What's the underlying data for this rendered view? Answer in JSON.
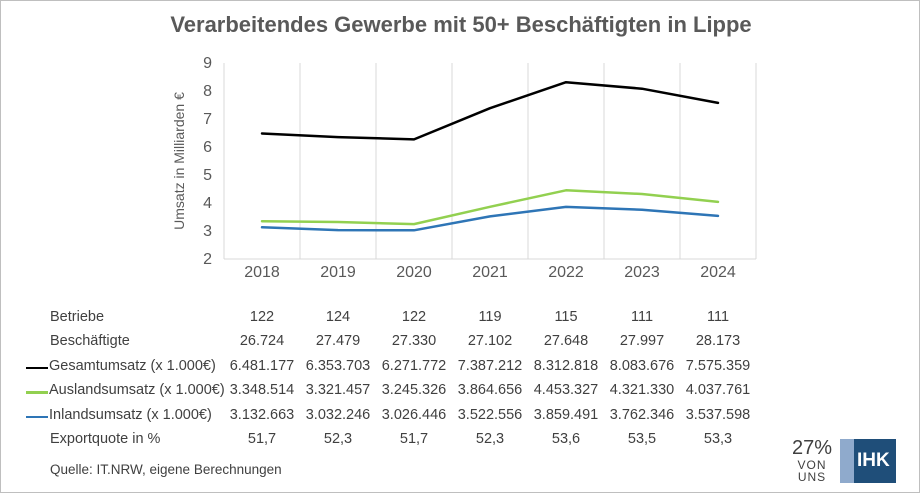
{
  "chart_data": {
    "type": "line",
    "title": "Verarbeitendes Gewerbe mit 50+ Beschäftigten in Lippe",
    "ylabel": "Umsatz in Milliarden €",
    "ylim": [
      2,
      9
    ],
    "yticks": [
      "2",
      "3",
      "4",
      "5",
      "6",
      "7",
      "8",
      "9"
    ],
    "grid": "vertical",
    "categories": [
      "2018",
      "2019",
      "2020",
      "2021",
      "2022",
      "2023",
      "2024"
    ],
    "series": [
      {
        "name": "Gesamtumsatz (x 1.000€)",
        "color": "#000000",
        "values": [
          6.481177,
          6.353703,
          6.271772,
          7.387212,
          8.312818,
          8.083676,
          7.575359
        ]
      },
      {
        "name": "Auslandsumsatz (x 1.000€)",
        "color": "#92d050",
        "values": [
          3.348514,
          3.321457,
          3.245326,
          3.864656,
          4.453327,
          4.32133,
          4.037761
        ]
      },
      {
        "name": "Inlandsumsatz (x 1.000€)",
        "color": "#2e75b6",
        "values": [
          3.132663,
          3.032246,
          3.026446,
          3.522556,
          3.859491,
          3.762346,
          3.537598
        ]
      }
    ]
  },
  "table": {
    "rows": [
      {
        "label": "Betriebe",
        "key": false,
        "color": "",
        "cells": [
          "122",
          "124",
          "122",
          "119",
          "115",
          "111",
          "111"
        ]
      },
      {
        "label": "Beschäftigte",
        "key": false,
        "color": "",
        "cells": [
          "26.724",
          "27.479",
          "27.330",
          "27.102",
          "27.648",
          "27.997",
          "28.173"
        ]
      },
      {
        "label": "Gesamtumsatz (x 1.000€)",
        "key": true,
        "color": "#000000",
        "cells": [
          "6.481.177",
          "6.353.703",
          "6.271.772",
          "7.387.212",
          "8.312.818",
          "8.083.676",
          "7.575.359"
        ]
      },
      {
        "label": "Auslandsumsatz (x 1.000€)",
        "key": true,
        "color": "#92d050",
        "cells": [
          "3.348.514",
          "3.321.457",
          "3.245.326",
          "3.864.656",
          "4.453.327",
          "4.321.330",
          "4.037.761"
        ]
      },
      {
        "label": "Inlandsumsatz (x 1.000€)",
        "key": true,
        "color": "#2e75b6",
        "cells": [
          "3.132.663",
          "3.032.246",
          "3.026.446",
          "3.522.556",
          "3.859.491",
          "3.762.346",
          "3.537.598"
        ]
      },
      {
        "label": "Exportquote in %",
        "key": false,
        "color": "",
        "cells": [
          "51,7",
          "52,3",
          "51,7",
          "52,3",
          "53,6",
          "53,5",
          "53,3"
        ]
      }
    ]
  },
  "source": "Quelle: IT.NRW, eigene Berechnungen",
  "logo": {
    "percent": "27%",
    "sub": "VON UNS",
    "brand": "IHK"
  }
}
